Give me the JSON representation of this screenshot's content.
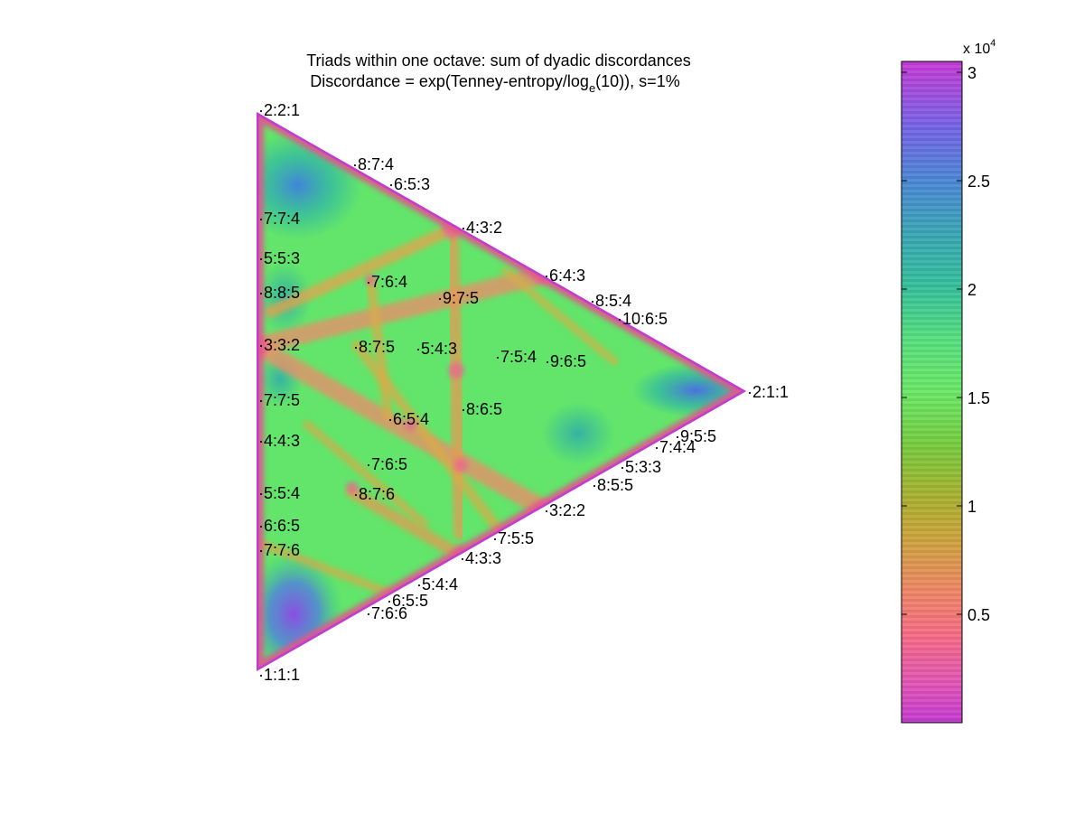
{
  "chart_data": {
    "type": "heatmap",
    "title": "Triads within one octave: sum of dyadic discordances",
    "subtitle_parts": {
      "before": "Discordance = exp(Tenney-entropy/log",
      "subscript": "e",
      "after": "(10)), s=1%"
    },
    "colorbar": {
      "exponent_base": "x 10",
      "exponent_power": "4",
      "ticks": [
        {
          "value": 3,
          "label": "3"
        },
        {
          "value": 2.5,
          "label": "2.5"
        },
        {
          "value": 2,
          "label": "2"
        },
        {
          "value": 1.5,
          "label": "1.5"
        },
        {
          "value": 1,
          "label": "1"
        },
        {
          "value": 0.5,
          "label": "0.5"
        }
      ],
      "range": [
        0,
        3.05
      ],
      "colormap": "hsv-like: magenta (low) - pink - orange - olive - green - teal - blue - magenta (high)"
    },
    "triangle_vertices": [
      "2:2:1",
      "2:1:1",
      "1:1:1"
    ],
    "triad_labels": [
      {
        "label": "2:2:1",
        "a": 1.0,
        "b": 2.0,
        "side": "left"
      },
      {
        "label": "8:7:4",
        "a": 1.75,
        "b": 2.0,
        "side": "right"
      },
      {
        "label": "6:5:3",
        "a": 1.6667,
        "b": 2.0,
        "side": "right"
      },
      {
        "label": "7:7:4",
        "a": 1.0,
        "b": 1.75,
        "side": "left"
      },
      {
        "label": "4:3:2",
        "a": 1.5,
        "b": 2.0,
        "side": "right"
      },
      {
        "label": "5:5:3",
        "a": 1.0,
        "b": 1.6667,
        "side": "left"
      },
      {
        "label": "6:4:3",
        "a": 1.3333,
        "b": 2.0,
        "side": "right"
      },
      {
        "label": "7:6:4",
        "a": 1.5,
        "b": 1.75,
        "side": "right"
      },
      {
        "label": "8:8:5",
        "a": 1.0,
        "b": 1.6,
        "side": "left"
      },
      {
        "label": "9:7:5",
        "a": 1.4,
        "b": 1.8,
        "side": "right"
      },
      {
        "label": "8:5:4",
        "a": 1.25,
        "b": 2.0,
        "side": "right"
      },
      {
        "label": "10:6:5",
        "a": 1.2,
        "b": 2.0,
        "side": "right"
      },
      {
        "label": "3:3:2",
        "a": 1.0,
        "b": 1.5,
        "side": "left"
      },
      {
        "label": "8:7:5",
        "a": 1.4,
        "b": 1.6,
        "side": "right"
      },
      {
        "label": "5:4:3",
        "a": 1.3333,
        "b": 1.6667,
        "side": "right"
      },
      {
        "label": "7:5:4",
        "a": 1.25,
        "b": 1.75,
        "side": "right"
      },
      {
        "label": "9:6:5",
        "a": 1.2,
        "b": 1.8,
        "side": "right"
      },
      {
        "label": "2:1:1",
        "a": 1.0,
        "b": 2.0,
        "side": "right",
        "vertex": "right"
      },
      {
        "label": "7:7:5",
        "a": 1.0,
        "b": 1.4,
        "side": "left"
      },
      {
        "label": "8:6:5",
        "a": 1.2,
        "b": 1.6,
        "side": "right"
      },
      {
        "label": "6:5:4",
        "a": 1.25,
        "b": 1.5,
        "side": "right"
      },
      {
        "label": "9:5:5",
        "a": 1.0,
        "b": 1.8,
        "side": "right"
      },
      {
        "label": "4:4:3",
        "a": 1.0,
        "b": 1.3333,
        "side": "left"
      },
      {
        "label": "7:4:4",
        "a": 1.0,
        "b": 1.75,
        "side": "right"
      },
      {
        "label": "7:6:5",
        "a": 1.2,
        "b": 1.4,
        "side": "right"
      },
      {
        "label": "5:3:3",
        "a": 1.0,
        "b": 1.6667,
        "side": "right"
      },
      {
        "label": "8:5:5",
        "a": 1.0,
        "b": 1.6,
        "side": "right"
      },
      {
        "label": "5:5:4",
        "a": 1.0,
        "b": 1.25,
        "side": "left"
      },
      {
        "label": "8:7:6",
        "a": 1.1667,
        "b": 1.3333,
        "side": "right"
      },
      {
        "label": "3:2:2",
        "a": 1.0,
        "b": 1.5,
        "side": "right"
      },
      {
        "label": "6:6:5",
        "a": 1.0,
        "b": 1.2,
        "side": "left"
      },
      {
        "label": "7:5:5",
        "a": 1.0,
        "b": 1.4,
        "side": "right"
      },
      {
        "label": "7:7:6",
        "a": 1.0,
        "b": 1.1667,
        "side": "left"
      },
      {
        "label": "4:3:3",
        "a": 1.0,
        "b": 1.3333,
        "side": "right"
      },
      {
        "label": "5:4:4",
        "a": 1.0,
        "b": 1.25,
        "side": "right"
      },
      {
        "label": "6:5:5",
        "a": 1.0,
        "b": 1.2,
        "side": "right"
      },
      {
        "label": "7:6:6",
        "a": 1.0,
        "b": 1.1667,
        "side": "right"
      },
      {
        "label": "1:1:1",
        "a": 1.0,
        "b": 1.0,
        "side": "left"
      }
    ]
  }
}
